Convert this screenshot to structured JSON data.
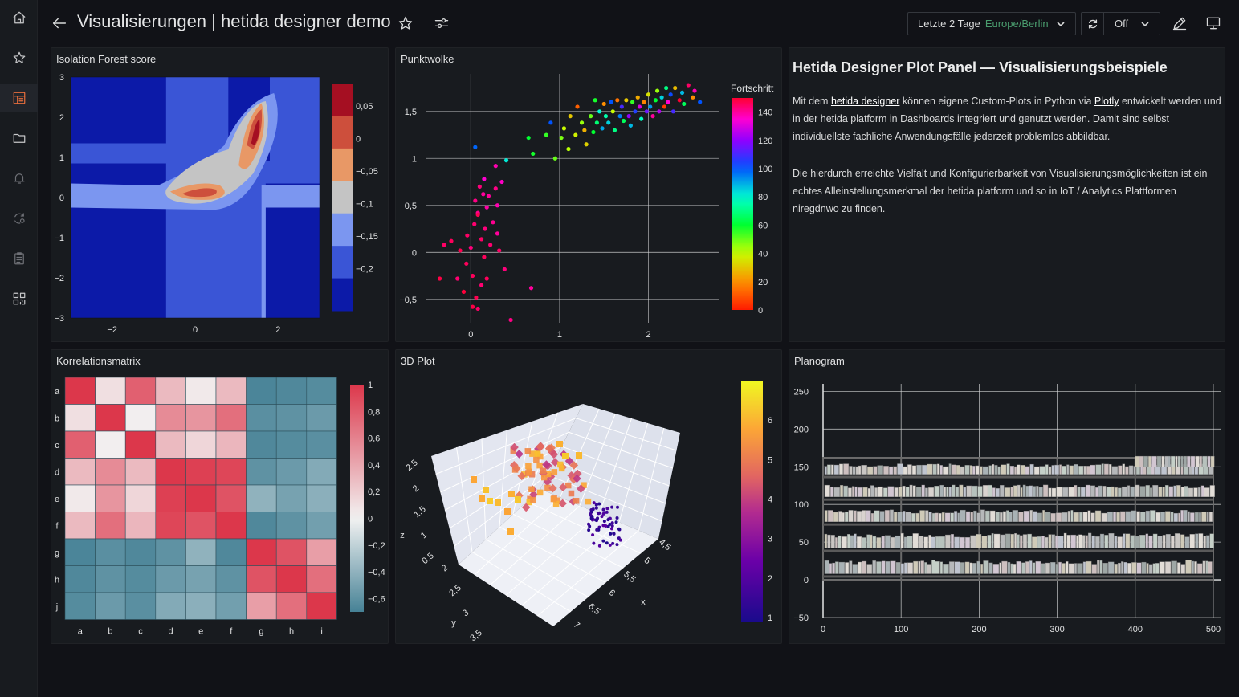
{
  "header": {
    "title": "Visualisierungen | hetida designer demo",
    "time_range": "Letzte 2 Tage",
    "timezone": "Europe/Berlin",
    "refresh_interval": "Off"
  },
  "sidebar": {
    "icons": [
      "home-icon",
      "star-icon",
      "dashboards-icon",
      "folder-icon",
      "bell-icon",
      "sync-settings-icon",
      "clipboard-icon",
      "qr-icon"
    ]
  },
  "colors": {
    "accent": "#e76e3c",
    "timezone": "#4a9c6e",
    "panel_bg": "#181b1f",
    "page_bg": "#111217"
  },
  "panels": {
    "isolation": {
      "title": "Isolation Forest score"
    },
    "scatter": {
      "title": "Punktwolke"
    },
    "text": {
      "heading": "Hetida Designer Plot Panel — Visualisierungsbeispiele",
      "p1_a": "Mit dem ",
      "p1_link1": "hetida designer",
      "p1_b": " können eigene Custom-Plots in Python via ",
      "p1_link2": "Plotly",
      "p1_c": " entwickelt werden und in der hetida platform in Dashboards integriert und genutzt werden. Damit sind selbst individuellste fachliche Anwendungsfälle jederzeit problemlos abbildbar.",
      "p2": "Die hierdurch erreichte Vielfalt und Konfigurierbarkeit von Visualisierungsmöglichkeiten ist ein echtes Alleinstellungsmerkmal der hetida.platform und so in IoT / Analytics Plattformen niregdnwo zu finden."
    },
    "correlation": {
      "title": "Korrelationsmatrix"
    },
    "plot3d": {
      "title": "3D Plot"
    },
    "planogram": {
      "title": "Planogram"
    }
  },
  "chart_data": [
    {
      "type": "heatmap",
      "id": "isolation",
      "x_ticks": [
        "−2",
        "0",
        "2"
      ],
      "x_tick_values": [
        -2,
        0,
        2
      ],
      "y_ticks": [
        "3",
        "2",
        "1",
        "0",
        "−1",
        "−2",
        "−3"
      ],
      "y_tick_values": [
        3,
        2,
        1,
        0,
        -1,
        -2,
        -3
      ],
      "xlim": [
        -3,
        3
      ],
      "ylim": [
        -3,
        3
      ],
      "colorbar_ticks": [
        "0,05",
        "0",
        "−0,05",
        "−0,1",
        "−0,15",
        "−0,2"
      ],
      "colorbar_levels": [
        "#a50f22",
        "#cd4f3c",
        "#e89866",
        "#c4c4c4",
        "#7b96f0",
        "#3a55d6",
        "#0c1aa8"
      ]
    },
    {
      "type": "scatter",
      "id": "scatter",
      "xlim": [
        -0.5,
        2.8
      ],
      "ylim": [
        -0.75,
        1.9
      ],
      "x_ticks": [
        "0",
        "1",
        "2"
      ],
      "x_tick_values": [
        0,
        1,
        2
      ],
      "y_ticks": [
        "1,5",
        "1",
        "0,5",
        "0",
        "−0,5"
      ],
      "y_tick_values": [
        1.5,
        1,
        0.5,
        0,
        -0.5
      ],
      "colorbar_title": "Fortschritt",
      "colorbar_ticks": [
        "140",
        "120",
        "100",
        "80",
        "60",
        "40",
        "20",
        "0"
      ],
      "colorbar_tick_values": [
        140,
        120,
        100,
        80,
        60,
        40,
        20,
        0
      ],
      "colorbar_range": [
        0,
        150
      ],
      "points": [
        [
          -0.35,
          -0.28,
          148
        ],
        [
          -0.3,
          0.08,
          145
        ],
        [
          -0.22,
          0.12,
          146
        ],
        [
          -0.15,
          -0.28,
          144
        ],
        [
          -0.12,
          0.02,
          147
        ],
        [
          -0.08,
          -0.42,
          149
        ],
        [
          -0.05,
          -0.12,
          146
        ],
        [
          -0.04,
          0.18,
          145
        ],
        [
          0.0,
          0.05,
          143
        ],
        [
          0.02,
          -0.25,
          146
        ],
        [
          0.04,
          0.3,
          144
        ],
        [
          0.05,
          0.55,
          142
        ],
        [
          0.06,
          -0.48,
          147
        ],
        [
          0.08,
          0.42,
          141
        ],
        [
          0.1,
          0.7,
          143
        ],
        [
          0.12,
          0.14,
          145
        ],
        [
          0.14,
          0.62,
          140
        ],
        [
          0.15,
          -0.05,
          146
        ],
        [
          0.16,
          0.25,
          143
        ],
        [
          0.18,
          0.48,
          139
        ],
        [
          0.2,
          0.6,
          140
        ],
        [
          0.22,
          0.08,
          144
        ],
        [
          0.25,
          0.32,
          141
        ],
        [
          0.28,
          0.68,
          142
        ],
        [
          0.3,
          0.5,
          138
        ],
        [
          0.32,
          0.02,
          145
        ],
        [
          0.35,
          0.75,
          136
        ],
        [
          0.38,
          -0.18,
          143
        ],
        [
          0.12,
          -0.35,
          144
        ],
        [
          0.18,
          -0.28,
          146
        ],
        [
          0.3,
          0.2,
          140
        ],
        [
          0.02,
          -0.58,
          148
        ],
        [
          0.08,
          -0.6,
          145
        ],
        [
          0.45,
          -0.72,
          142
        ],
        [
          0.68,
          -0.38,
          140
        ],
        [
          0.28,
          0.92,
          138
        ],
        [
          0.15,
          0.78,
          135
        ],
        [
          0.08,
          0.4,
          147
        ],
        [
          0.05,
          1.12,
          98
        ],
        [
          0.4,
          0.98,
          82
        ],
        [
          0.65,
          1.22,
          60
        ],
        [
          0.7,
          1.05,
          58
        ],
        [
          0.85,
          1.25,
          55
        ],
        [
          0.9,
          1.38,
          100
        ],
        [
          0.95,
          1.0,
          50
        ],
        [
          1.02,
          1.22,
          48
        ],
        [
          1.05,
          1.32,
          40
        ],
        [
          1.1,
          1.1,
          42
        ],
        [
          1.12,
          1.45,
          30
        ],
        [
          1.18,
          1.25,
          38
        ],
        [
          1.2,
          1.55,
          12
        ],
        [
          1.25,
          1.38,
          45
        ],
        [
          1.28,
          1.3,
          26
        ],
        [
          1.3,
          1.15,
          32
        ],
        [
          1.35,
          1.45,
          50
        ],
        [
          1.38,
          1.28,
          60
        ],
        [
          1.4,
          1.62,
          58
        ],
        [
          1.42,
          1.38,
          68
        ],
        [
          1.45,
          1.5,
          80
        ],
        [
          1.48,
          1.32,
          90
        ],
        [
          1.5,
          1.58,
          20
        ],
        [
          1.52,
          1.45,
          75
        ],
        [
          1.55,
          1.38,
          85
        ],
        [
          1.58,
          1.6,
          100
        ],
        [
          1.6,
          1.5,
          40
        ],
        [
          1.62,
          1.3,
          70
        ],
        [
          1.65,
          1.62,
          15
        ],
        [
          1.68,
          1.45,
          95
        ],
        [
          1.7,
          1.55,
          110
        ],
        [
          1.72,
          1.4,
          65
        ],
        [
          1.75,
          1.62,
          30
        ],
        [
          1.78,
          1.45,
          120
        ],
        [
          1.8,
          1.35,
          88
        ],
        [
          1.82,
          1.6,
          55
        ],
        [
          1.85,
          1.5,
          105
        ],
        [
          1.88,
          1.65,
          25
        ],
        [
          1.9,
          1.55,
          130
        ],
        [
          1.92,
          1.42,
          78
        ],
        [
          1.95,
          1.6,
          18
        ],
        [
          1.98,
          1.5,
          115
        ],
        [
          2.0,
          1.68,
          35
        ],
        [
          2.02,
          1.55,
          92
        ],
        [
          2.05,
          1.45,
          140
        ],
        [
          2.08,
          1.62,
          60
        ],
        [
          2.1,
          1.72,
          45
        ],
        [
          2.12,
          1.5,
          125
        ],
        [
          2.15,
          1.65,
          85
        ],
        [
          2.18,
          1.55,
          5
        ],
        [
          2.2,
          1.75,
          70
        ],
        [
          2.22,
          1.6,
          135
        ],
        [
          2.25,
          1.68,
          102
        ],
        [
          2.28,
          1.5,
          110
        ],
        [
          2.3,
          1.75,
          28
        ],
        [
          2.35,
          1.62,
          150
        ],
        [
          2.38,
          1.7,
          88
        ],
        [
          2.4,
          1.58,
          65
        ],
        [
          2.45,
          1.78,
          145
        ],
        [
          2.5,
          1.65,
          20
        ],
        [
          2.52,
          1.72,
          138
        ],
        [
          2.58,
          1.6,
          100
        ]
      ]
    },
    {
      "type": "heatmap",
      "id": "correlation",
      "x_categories": [
        "a",
        "b",
        "c",
        "d",
        "e",
        "f",
        "g",
        "h",
        "i"
      ],
      "y_categories": [
        "a",
        "b",
        "c",
        "d",
        "e",
        "f",
        "g",
        "h",
        "j"
      ],
      "zlim": [
        -0.7,
        1
      ],
      "colorbar_ticks": [
        "1",
        "0,8",
        "0,6",
        "0,4",
        "0,2",
        "0",
        "−0,2",
        "−0,4",
        "−0,6"
      ],
      "colorbar_tick_values": [
        1,
        0.8,
        0.6,
        0.4,
        0.2,
        0,
        -0.2,
        -0.4,
        -0.6
      ],
      "values": [
        [
          1.0,
          0.1,
          0.78,
          0.3,
          0.05,
          0.3,
          -0.68,
          -0.66,
          -0.64
        ],
        [
          0.1,
          1.0,
          0.02,
          0.55,
          0.5,
          0.7,
          -0.62,
          -0.6,
          -0.55
        ],
        [
          0.78,
          0.02,
          1.0,
          0.3,
          0.15,
          0.32,
          -0.66,
          -0.64,
          -0.62
        ],
        [
          0.3,
          0.55,
          0.3,
          1.0,
          0.95,
          0.92,
          -0.6,
          -0.55,
          -0.45
        ],
        [
          0.05,
          0.5,
          0.15,
          0.95,
          1.0,
          0.85,
          -0.4,
          -0.5,
          -0.42
        ],
        [
          0.3,
          0.7,
          0.32,
          0.92,
          0.85,
          1.0,
          -0.66,
          -0.6,
          -0.52
        ],
        [
          -0.68,
          -0.62,
          -0.66,
          -0.6,
          -0.4,
          -0.66,
          1.0,
          0.85,
          0.45
        ],
        [
          -0.66,
          -0.6,
          -0.64,
          -0.55,
          -0.5,
          -0.6,
          0.85,
          1.0,
          0.7
        ],
        [
          -0.64,
          -0.55,
          -0.62,
          -0.45,
          -0.42,
          -0.52,
          0.45,
          0.7,
          1.0
        ]
      ]
    },
    {
      "type": "scatter",
      "id": "plot3d",
      "z_ticks": [
        "2,5",
        "2",
        "1,5",
        "1",
        "0,5"
      ],
      "y_ticks": [
        "2",
        "2,5",
        "3",
        "3,5"
      ],
      "x_ticks": [
        "4,5",
        "5",
        "5,5",
        "6",
        "6,5",
        "7"
      ],
      "xlabel": "x",
      "ylabel": "y",
      "zlabel": "z",
      "colorbar_ticks": [
        "6",
        "5",
        "4",
        "3",
        "2",
        "1"
      ],
      "colorbar_tick_values": [
        6,
        5,
        4,
        3,
        2,
        1
      ],
      "colorbar_range": [
        0.9,
        7
      ]
    },
    {
      "type": "bar",
      "id": "planogram",
      "xlim": [
        0,
        500
      ],
      "ylim": [
        -50,
        260
      ],
      "x_ticks": [
        "0",
        "100",
        "200",
        "300",
        "400",
        "500"
      ],
      "x_tick_values": [
        0,
        100,
        200,
        300,
        400,
        500
      ],
      "y_ticks": [
        "250",
        "200",
        "150",
        "100",
        "50",
        "0",
        "−50"
      ],
      "y_tick_values": [
        250,
        200,
        150,
        100,
        50,
        0,
        -50
      ],
      "shelves": [
        {
          "y": 8,
          "h": 18
        },
        {
          "y": 42,
          "h": 20
        },
        {
          "y": 77,
          "h": 16
        },
        {
          "y": 110,
          "h": 16
        },
        {
          "y": 140,
          "h": 14
        }
      ],
      "top_boxes": [
        {
          "x0": 400,
          "x1": 498,
          "y": 150,
          "h": 14
        }
      ]
    }
  ]
}
